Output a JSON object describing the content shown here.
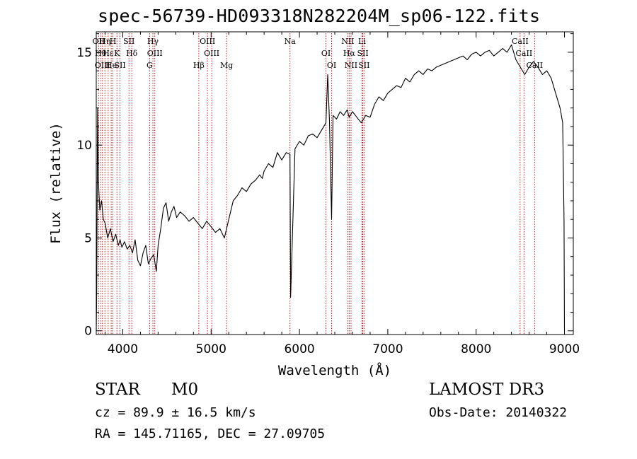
{
  "header": {
    "title": "spec-56739-HD093318N282204M_sp06-122.fits"
  },
  "info": {
    "object_class": "STAR",
    "subclass": "M0",
    "survey": "LAMOST DR3",
    "cz": "cz = 89.9 ± 16.5 km/s",
    "obs_date": "Obs-Date: 20140322",
    "ra_dec": "RA = 145.71165, DEC =  27.09705"
  },
  "chart_data": {
    "type": "line",
    "title": "spec-56739-HD093318N282204M_sp06-122.fits",
    "xlabel": "Wavelength (Å)",
    "ylabel": "Flux (relative)",
    "xlim": [
      3700,
      9100
    ],
    "ylim": [
      -0.2,
      16.1
    ],
    "x_ticks": [
      4000,
      5000,
      6000,
      7000,
      8000,
      9000
    ],
    "y_ticks": [
      0,
      5,
      10,
      15
    ],
    "grid": false,
    "line_color": "#000000",
    "marker_color": "#cc0000",
    "series": [
      {
        "x": [
          3700,
          3705,
          3715,
          3725,
          3740,
          3760,
          3780,
          3800,
          3830,
          3860,
          3890,
          3920,
          3950,
          3970,
          3990,
          4020,
          4050,
          4080,
          4110,
          4140,
          4170,
          4200,
          4230,
          4260,
          4290,
          4320,
          4350,
          4380,
          4400,
          4430,
          4460,
          4490,
          4520,
          4550,
          4580,
          4610,
          4650,
          4700,
          4750,
          4800,
          4850,
          4900,
          4950,
          5000,
          5050,
          5100,
          5150,
          5200,
          5250,
          5300,
          5350,
          5400,
          5450,
          5500,
          5550,
          5580,
          5600,
          5650,
          5700,
          5750,
          5800,
          5850,
          5893,
          5900,
          5950,
          6000,
          6050,
          6100,
          6150,
          6200,
          6250,
          6300,
          6320,
          6340,
          6364,
          6380,
          6420,
          6460,
          6500,
          6540,
          6563,
          6600,
          6650,
          6700,
          6750,
          6800,
          6850,
          6900,
          6950,
          7000,
          7050,
          7100,
          7150,
          7200,
          7250,
          7300,
          7350,
          7400,
          7450,
          7500,
          7550,
          7600,
          7650,
          7700,
          7750,
          7800,
          7850,
          7900,
          7950,
          8000,
          8050,
          8100,
          8150,
          8200,
          8250,
          8300,
          8350,
          8400,
          8450,
          8500,
          8550,
          8600,
          8650,
          8700,
          8750,
          8800,
          8850,
          8900,
          8950,
          8980,
          8995,
          9000
        ],
        "y": [
          0.0,
          2.0,
          12.0,
          8.0,
          6.5,
          7.0,
          6.0,
          5.8,
          5.0,
          5.5,
          4.8,
          5.2,
          4.6,
          4.9,
          4.5,
          4.8,
          4.4,
          4.6,
          4.2,
          4.9,
          3.8,
          3.5,
          4.2,
          4.6,
          3.6,
          3.9,
          4.1,
          3.2,
          4.6,
          5.5,
          6.6,
          6.9,
          5.9,
          6.4,
          6.7,
          6.1,
          6.4,
          6.2,
          5.9,
          6.1,
          5.8,
          5.5,
          5.9,
          5.6,
          5.3,
          5.5,
          5.0,
          6.0,
          7.0,
          7.3,
          7.7,
          7.5,
          7.9,
          8.1,
          8.4,
          8.2,
          8.6,
          9.0,
          8.8,
          9.6,
          9.2,
          9.6,
          9.5,
          1.8,
          9.8,
          10.2,
          10.0,
          10.5,
          10.6,
          10.4,
          10.8,
          11.2,
          13.8,
          11.3,
          6.0,
          11.6,
          11.4,
          11.8,
          11.6,
          11.9,
          11.5,
          11.8,
          11.5,
          11.2,
          11.6,
          11.5,
          12.2,
          12.6,
          12.4,
          12.8,
          13.0,
          13.2,
          13.1,
          13.6,
          13.4,
          13.8,
          14.0,
          13.8,
          14.1,
          14.0,
          14.2,
          14.3,
          14.4,
          14.5,
          14.6,
          14.7,
          14.8,
          14.6,
          14.9,
          15.0,
          14.8,
          15.0,
          15.1,
          14.8,
          15.0,
          15.2,
          15.0,
          15.4,
          14.6,
          14.2,
          13.8,
          14.2,
          14.5,
          14.2,
          13.8,
          14.0,
          13.6,
          12.8,
          12.0,
          11.2,
          6.0,
          0.0
        ]
      }
    ],
    "line_markers": [
      {
        "wavelength": 3727,
        "label": "OII"
      },
      {
        "wavelength": 3750,
        "label": "Hθ"
      },
      {
        "wavelength": 3770,
        "label": "OIII"
      },
      {
        "wavelength": 3798,
        "label": "Hη"
      },
      {
        "wavelength": 3835,
        "label": "Hε"
      },
      {
        "wavelength": 3869,
        "label": "He"
      },
      {
        "wavelength": 3889,
        "label": "H"
      },
      {
        "wavelength": 3934,
        "label": "K"
      },
      {
        "wavelength": 3969,
        "label": "SII"
      },
      {
        "wavelength": 4070,
        "label": "SII"
      },
      {
        "wavelength": 4102,
        "label": "Hδ"
      },
      {
        "wavelength": 4304,
        "label": "G"
      },
      {
        "wavelength": 4341,
        "label": "Hγ"
      },
      {
        "wavelength": 4363,
        "label": "OIII"
      },
      {
        "wavelength": 4861,
        "label": "Hβ"
      },
      {
        "wavelength": 4959,
        "label": "OIII"
      },
      {
        "wavelength": 5007,
        "label": "OIII"
      },
      {
        "wavelength": 5175,
        "label": "Mg"
      },
      {
        "wavelength": 5893,
        "label": "Na"
      },
      {
        "wavelength": 6300,
        "label": "OI"
      },
      {
        "wavelength": 6364,
        "label": "OI"
      },
      {
        "wavelength": 6548,
        "label": "NII"
      },
      {
        "wavelength": 6563,
        "label": "Hα"
      },
      {
        "wavelength": 6584,
        "label": "NII"
      },
      {
        "wavelength": 6708,
        "label": "Li"
      },
      {
        "wavelength": 6717,
        "label": "SII"
      },
      {
        "wavelength": 6731,
        "label": "SII"
      },
      {
        "wavelength": 8498,
        "label": "CaII"
      },
      {
        "wavelength": 8542,
        "label": "CaII"
      },
      {
        "wavelength": 8662,
        "label": "CaII"
      }
    ]
  }
}
